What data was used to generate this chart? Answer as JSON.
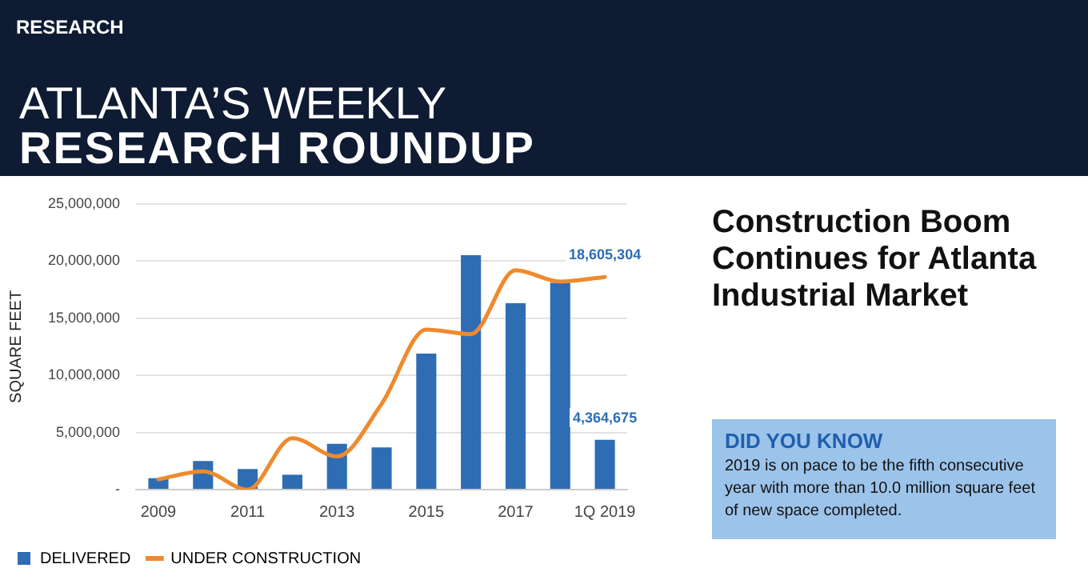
{
  "chart_data": {
    "type": "bar",
    "title": "Construction Boom Continues for Atlanta Industrial Market",
    "ylabel": "SQUARE FEET",
    "annotations": [
      "RESEARCH",
      "ATLANTA’S WEEKLY",
      "RESEARCH ROUNDUP",
      "DID YOU KNOW",
      "2019 is on pace to be the fifth consecutive year with more than 10.0 million square feet of new space completed."
    ],
    "categories": [
      "2009",
      null,
      "2011",
      null,
      "2013",
      null,
      "2015",
      null,
      "2017",
      null,
      "1Q 2019"
    ],
    "series": [
      {
        "name": "DELIVERED",
        "color": "#2e6db4",
        "values": [
          1000000,
          2500000,
          1800000,
          1300000,
          4000000,
          3700000,
          11900000,
          20500000,
          16300000,
          18100000,
          4364675
        ],
        "value_labels": [
          null,
          null,
          null,
          null,
          null,
          null,
          null,
          null,
          null,
          null,
          "4,364,675"
        ]
      },
      {
        "name": "UNDER CONSTRUCTION",
        "type": "line",
        "color": "#ee8a2e",
        "values": [
          900000,
          1600000,
          0,
          4500000,
          2900000,
          7500000,
          14000000,
          13600000,
          19200000,
          18200000,
          18605304
        ],
        "value_labels": [
          null,
          null,
          null,
          null,
          null,
          null,
          null,
          null,
          null,
          null,
          "18,605,304"
        ]
      }
    ],
    "ylim": [
      0,
      25000000
    ],
    "yticks": [
      {
        "value": 0,
        "label": "-"
      },
      {
        "value": 5000000,
        "label": "5,000,000"
      },
      {
        "value": 10000000,
        "label": "10,000,000"
      },
      {
        "value": 15000000,
        "label": "15,000,000"
      },
      {
        "value": 20000000,
        "label": "20,000,000"
      },
      {
        "value": 25000000,
        "label": "25,000,000"
      }
    ],
    "grid": "y",
    "legend": "bottom",
    "marker": "none",
    "line_style": "solid"
  }
}
